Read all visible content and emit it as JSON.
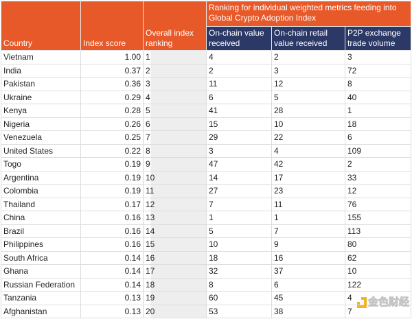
{
  "header": {
    "country": "Country",
    "index_score": "Index score",
    "overall": "Overall index ranking",
    "group": "Ranking for individual weighted metrics feeding into Global Crypto Adoption Index",
    "onchain": "On-chain value received",
    "retail": "On-chain retail value received",
    "p2p": "P2P exchange trade volume"
  },
  "colors": {
    "header_orange": "#e8592a",
    "header_navy": "#2c3866"
  },
  "rows": [
    [
      "Vietnam",
      "1.00",
      "1",
      "4",
      "2",
      "3"
    ],
    [
      "India",
      "0.37",
      "2",
      "2",
      "3",
      "72"
    ],
    [
      "Pakistan",
      "0.36",
      "3",
      "11",
      "12",
      "8"
    ],
    [
      "Ukraine",
      "0.29",
      "4",
      "6",
      "5",
      "40"
    ],
    [
      "Kenya",
      "0.28",
      "5",
      "41",
      "28",
      "1"
    ],
    [
      "Nigeria",
      "0.26",
      "6",
      "15",
      "10",
      "18"
    ],
    [
      "Venezuela",
      "0.25",
      "7",
      "29",
      "22",
      "6"
    ],
    [
      "United States",
      "0.22",
      "8",
      "3",
      "4",
      "109"
    ],
    [
      "Togo",
      "0.19",
      "9",
      "47",
      "42",
      "2"
    ],
    [
      "Argentina",
      "0.19",
      "10",
      "14",
      "17",
      "33"
    ],
    [
      "Colombia",
      "0.19",
      "11",
      "27",
      "23",
      "12"
    ],
    [
      "Thailand",
      "0.17",
      "12",
      "7",
      "11",
      "76"
    ],
    [
      "China",
      "0.16",
      "13",
      "1",
      "1",
      "155"
    ],
    [
      "Brazil",
      "0.16",
      "14",
      "5",
      "7",
      "113"
    ],
    [
      "Philippines",
      "0.16",
      "15",
      "10",
      "9",
      "80"
    ],
    [
      "South Africa",
      "0.14",
      "16",
      "18",
      "16",
      "62"
    ],
    [
      "Ghana",
      "0.14",
      "17",
      "32",
      "37",
      "10"
    ],
    [
      "Russian Federation",
      "0.14",
      "18",
      "8",
      "6",
      "122"
    ],
    [
      "Tanzania",
      "0.13",
      "19",
      "60",
      "45",
      "4"
    ],
    [
      "Afghanistan",
      "0.13",
      "20",
      "53",
      "38",
      "7"
    ]
  ],
  "watermark": "金色财经"
}
